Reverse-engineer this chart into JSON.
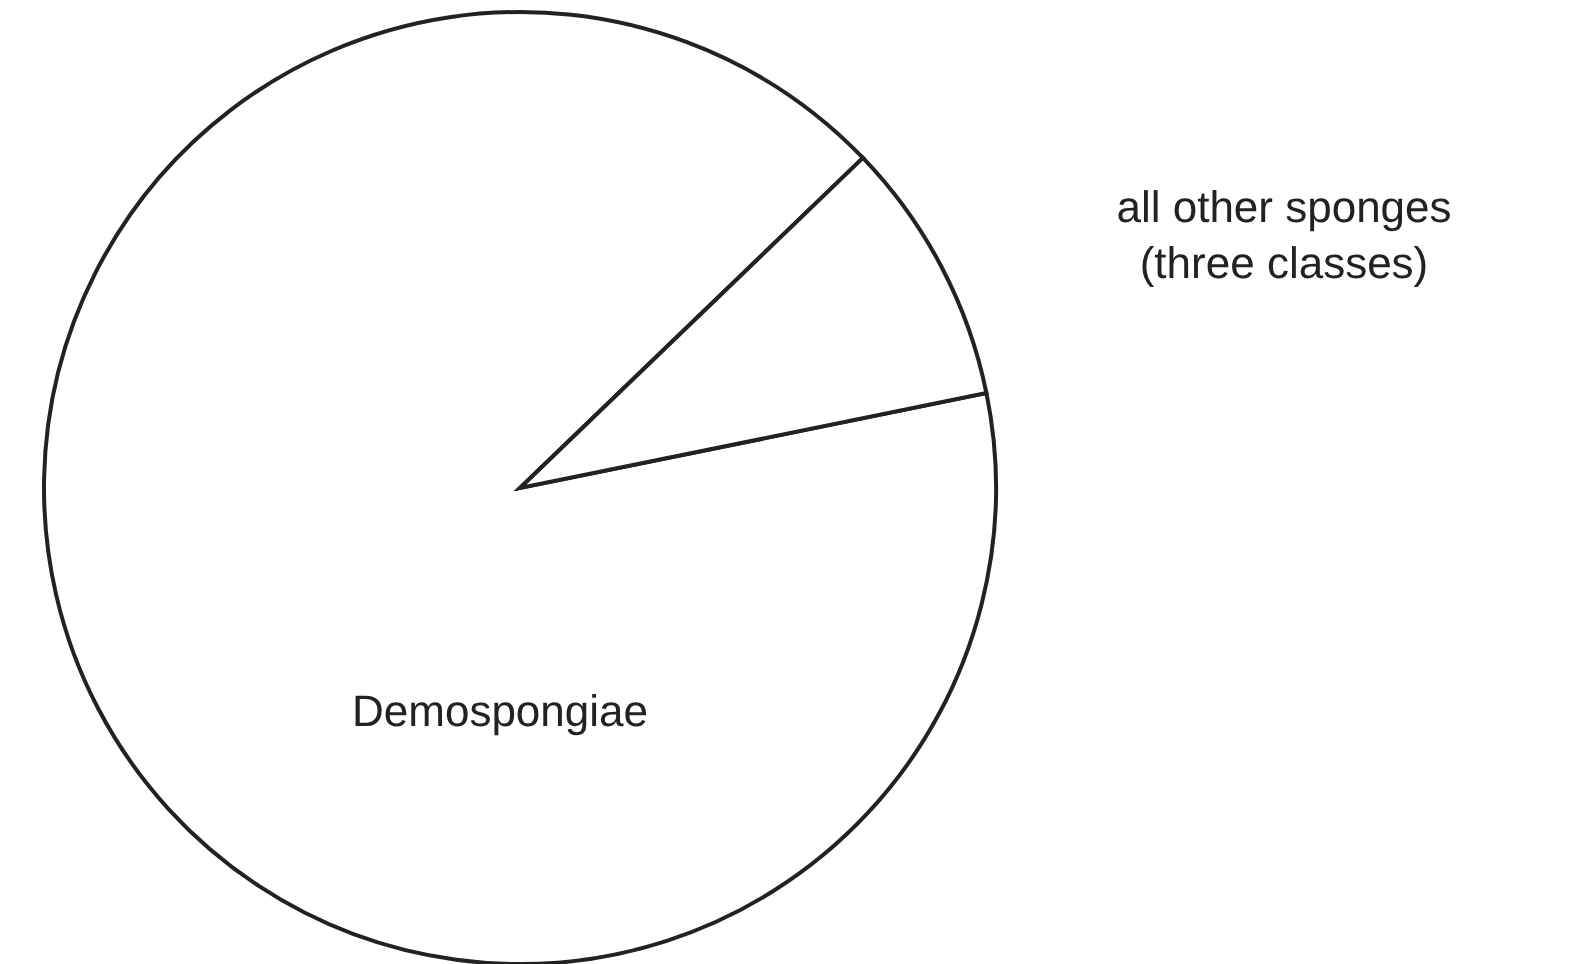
{
  "chart_data": {
    "type": "pie",
    "categories": [
      "Demospongiae",
      "all other sponges\n(three classes)"
    ],
    "values": [
      91,
      9
    ],
    "colors": [
      "#ffffff",
      "#ffffff"
    ]
  }
}
